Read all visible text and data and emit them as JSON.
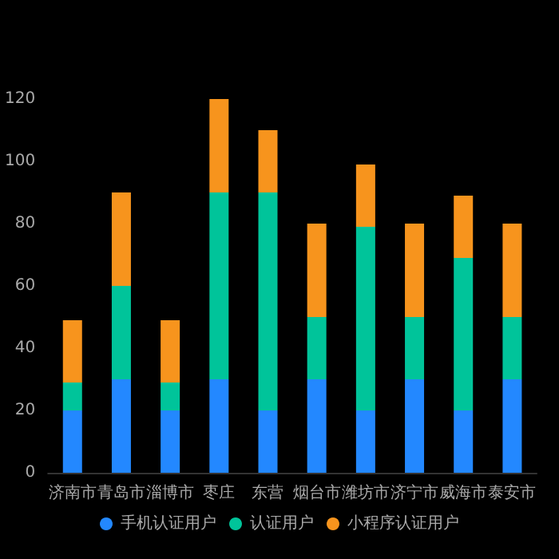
{
  "chart_data": {
    "type": "bar",
    "stacked": true,
    "categories": [
      "济南市",
      "青岛市",
      "淄博市",
      "枣庄",
      "东营",
      "烟台市",
      "潍坊市",
      "济宁市",
      "威海市",
      "泰安市"
    ],
    "series": [
      {
        "name": "手机认证用户",
        "color": "#2388ff",
        "values": [
          20,
          30,
          20,
          30,
          20,
          30,
          20,
          30,
          20,
          30
        ]
      },
      {
        "name": "认证用户",
        "color": "#00c49a",
        "values": [
          9,
          30,
          9,
          60,
          70,
          20,
          59,
          20,
          49,
          20
        ]
      },
      {
        "name": "小程序认证用户",
        "color": "#f7941d",
        "values": [
          20,
          30,
          20,
          30,
          20,
          30,
          20,
          30,
          20,
          30
        ]
      }
    ],
    "ylim": [
      0,
      120
    ],
    "yticks": [
      0,
      20,
      40,
      60,
      80,
      100,
      120
    ],
    "grid": false,
    "legend": "bottom"
  }
}
